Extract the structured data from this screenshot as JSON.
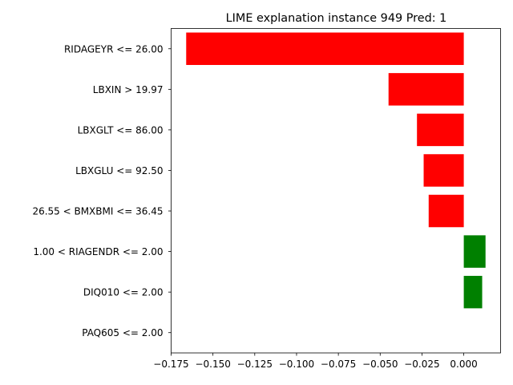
{
  "chart_data": {
    "type": "bar",
    "orientation": "horizontal",
    "title": "LIME explanation instance 949 Pred: 1",
    "xlabel": "",
    "ylabel": "",
    "xlim": [
      -0.175,
      0.022
    ],
    "xticks": [
      -0.175,
      -0.15,
      -0.125,
      -0.1,
      -0.075,
      -0.05,
      -0.025,
      0.0
    ],
    "xtick_labels": [
      "−0.175",
      "−0.150",
      "−0.125",
      "−0.100",
      "−0.075",
      "−0.050",
      "−0.025",
      "0.000"
    ],
    "grid": false,
    "positive_color": "#008000",
    "negative_color": "#ff0000",
    "categories": [
      "RIDAGEYR <= 26.00",
      "LBXIN > 19.97",
      "LBXGLT <= 86.00",
      "LBXGLU <= 92.50",
      "26.55 < BMXBMI <= 36.45",
      "1.00 < RIAGENDR <= 2.00",
      "DIQ010 <= 2.00",
      "PAQ605 <= 2.00"
    ],
    "values": [
      -0.166,
      -0.045,
      -0.028,
      -0.024,
      -0.021,
      0.013,
      0.011,
      0.0
    ]
  }
}
